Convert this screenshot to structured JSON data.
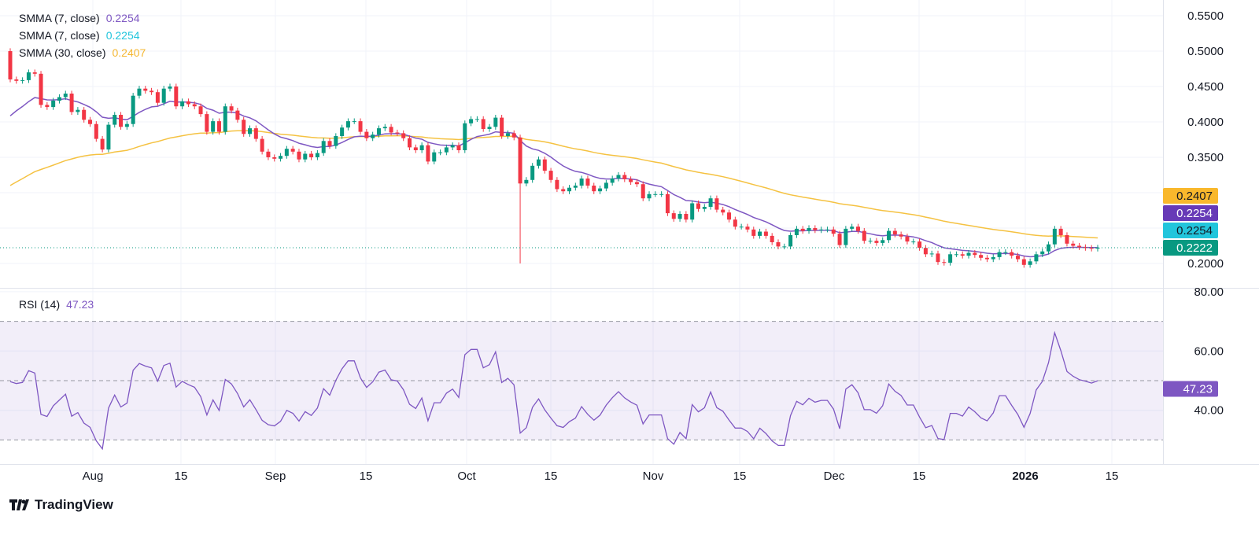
{
  "legend": [
    {
      "label": "SMMA (7, close)",
      "value": "0.2254",
      "color": "#7e57c2"
    },
    {
      "label": "SMMA (7, close)",
      "value": "0.2254",
      "color": "#22c5dc"
    },
    {
      "label": "SMMA (30, close)",
      "value": "0.2407",
      "color": "#f5b731"
    }
  ],
  "rsi_legend": {
    "label": "RSI (14)",
    "value": "47.23",
    "color": "#7e57c2"
  },
  "logo_text": "TradingView",
  "colors": {
    "up": "#089981",
    "down": "#f23645",
    "smma7": "#7e57c2",
    "smma30": "#f5c242",
    "rsi": "#7e57c2",
    "price_line": "#089981"
  },
  "chart_data": [
    {
      "type": "candlestick",
      "title": "",
      "interval": "1D",
      "y_ticks": [
        "0.5500",
        "0.5000",
        "0.4500",
        "0.4000",
        "0.3500",
        "0.2000"
      ],
      "ylim": [
        0.2,
        0.55
      ],
      "x_ticks": [
        "Aug",
        "15",
        "Sep",
        "15",
        "Oct",
        "15",
        "Nov",
        "15",
        "Dec",
        "15",
        "2026",
        "15"
      ],
      "first_open": 0.5,
      "close": [
        0.46,
        0.458,
        0.459,
        0.47,
        0.468,
        0.424,
        0.421,
        0.43,
        0.435,
        0.44,
        0.414,
        0.417,
        0.403,
        0.397,
        0.376,
        0.361,
        0.396,
        0.41,
        0.393,
        0.397,
        0.437,
        0.447,
        0.444,
        0.442,
        0.427,
        0.447,
        0.45,
        0.422,
        0.429,
        0.425,
        0.422,
        0.411,
        0.386,
        0.401,
        0.386,
        0.422,
        0.416,
        0.403,
        0.383,
        0.391,
        0.376,
        0.358,
        0.35,
        0.348,
        0.352,
        0.362,
        0.358,
        0.347,
        0.355,
        0.35,
        0.356,
        0.373,
        0.366,
        0.38,
        0.392,
        0.401,
        0.401,
        0.386,
        0.377,
        0.382,
        0.391,
        0.393,
        0.385,
        0.384,
        0.377,
        0.364,
        0.36,
        0.367,
        0.344,
        0.357,
        0.357,
        0.364,
        0.367,
        0.36,
        0.398,
        0.404,
        0.404,
        0.39,
        0.393,
        0.406,
        0.38,
        0.384,
        0.378,
        0.313,
        0.318,
        0.338,
        0.347,
        0.331,
        0.318,
        0.305,
        0.302,
        0.307,
        0.31,
        0.32,
        0.31,
        0.302,
        0.306,
        0.314,
        0.32,
        0.325,
        0.319,
        0.315,
        0.312,
        0.292,
        0.298,
        0.298,
        0.298,
        0.271,
        0.263,
        0.27,
        0.262,
        0.285,
        0.277,
        0.28,
        0.292,
        0.276,
        0.272,
        0.262,
        0.252,
        0.252,
        0.248,
        0.239,
        0.245,
        0.239,
        0.23,
        0.224,
        0.224,
        0.24,
        0.249,
        0.246,
        0.25,
        0.247,
        0.248,
        0.248,
        0.242,
        0.226,
        0.249,
        0.252,
        0.246,
        0.232,
        0.232,
        0.229,
        0.233,
        0.246,
        0.241,
        0.238,
        0.231,
        0.231,
        0.222,
        0.213,
        0.214,
        0.202,
        0.201,
        0.213,
        0.213,
        0.211,
        0.215,
        0.212,
        0.208,
        0.206,
        0.209,
        0.216,
        0.216,
        0.211,
        0.206,
        0.198,
        0.203,
        0.213,
        0.217,
        0.227,
        0.249,
        0.24,
        0.228,
        0.225,
        0.223,
        0.222,
        0.221,
        0.2222
      ],
      "notable_wicks": [
        {
          "candle": 83,
          "low": 0.2
        }
      ],
      "price_labels": [
        {
          "value": "0.2407",
          "bg": "#f9b82c",
          "fg": "#131722"
        },
        {
          "value": "0.2254",
          "bg": "#673ab7",
          "fg": "#ffffff"
        },
        {
          "value": "0.2254",
          "bg": "#22c5dc",
          "fg": "#131722"
        },
        {
          "value": "0.2222",
          "bg": "#089981",
          "fg": "#ffffff"
        }
      ],
      "last_price": 0.2222
    },
    {
      "type": "line",
      "title": "RSI (14)",
      "y_ticks": [
        "80.00",
        "60.00",
        "40.00"
      ],
      "bands": {
        "upper": 70,
        "middle": 50,
        "lower": 30
      },
      "last_value": "47.23"
    }
  ]
}
